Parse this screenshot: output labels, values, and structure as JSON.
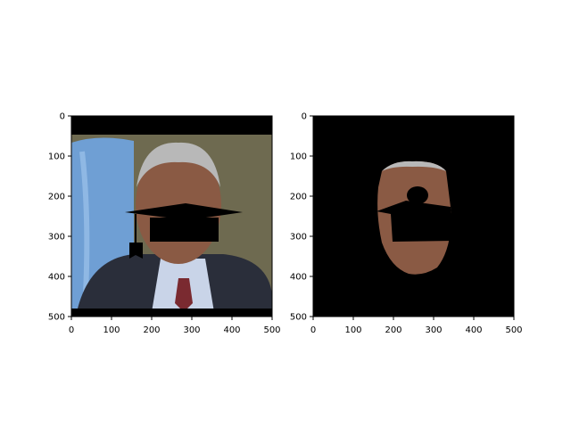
{
  "chart_data": [
    {
      "type": "image",
      "xlim": [
        0,
        500
      ],
      "ylim": [
        500,
        0
      ],
      "xticks": [
        0,
        100,
        200,
        300,
        400,
        500
      ],
      "yticks": [
        0,
        100,
        200,
        300,
        400,
        500
      ],
      "xtick_labels": [
        "0",
        "100",
        "200",
        "300",
        "400",
        "500"
      ],
      "ytick_labels": [
        "0",
        "100",
        "200",
        "300",
        "400",
        "500"
      ],
      "title": "",
      "xlabel": "",
      "ylabel": ""
    },
    {
      "type": "image",
      "xlim": [
        0,
        500
      ],
      "ylim": [
        500,
        0
      ],
      "xticks": [
        0,
        100,
        200,
        300,
        400,
        500
      ],
      "yticks": [
        0,
        100,
        200,
        300,
        400,
        500
      ],
      "xtick_labels": [
        "0",
        "100",
        "200",
        "300",
        "400",
        "500"
      ],
      "ytick_labels": [
        "0",
        "100",
        "200",
        "300",
        "400",
        "500"
      ],
      "title": "",
      "xlabel": "",
      "ylabel": ""
    }
  ],
  "colors": {
    "background": "#ffffff",
    "mask": "#000000",
    "flag_blue": "#6f9fd4",
    "suit": "#2a2e3a",
    "shirt": "#c9d4e8",
    "tie": "#7a2a30",
    "skin": "#8a5a44",
    "hair": "#b8b8b8",
    "backdrop": "#6e6a50"
  }
}
